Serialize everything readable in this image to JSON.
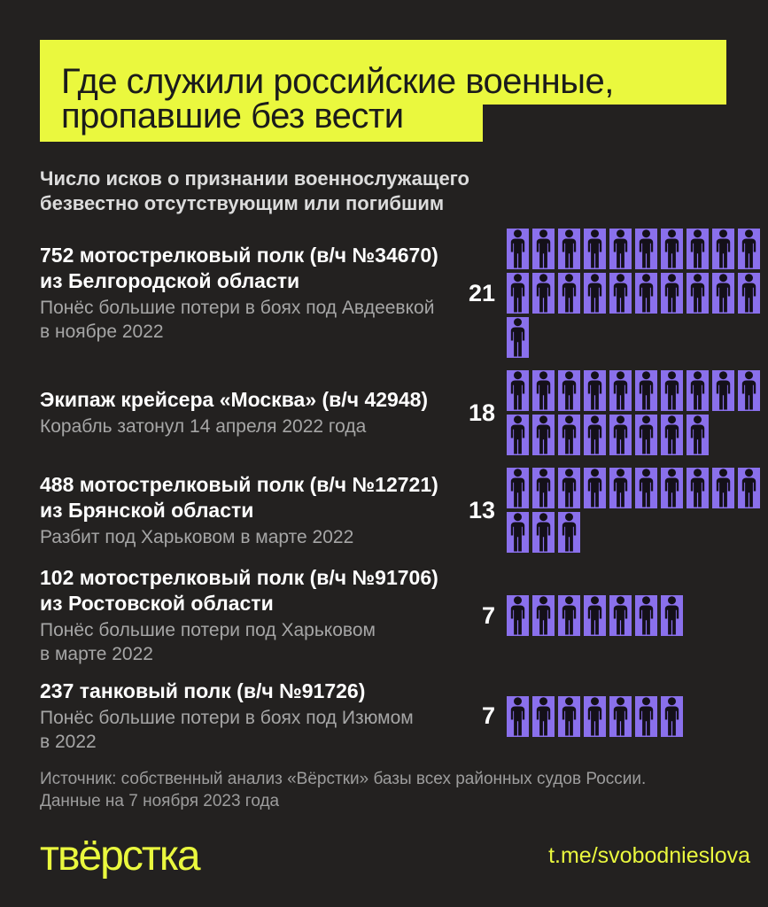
{
  "title": {
    "line1": "Где служили российские военные,",
    "line2": "пропавшие без вести"
  },
  "subtitle": "Число исков о признании военнослужащего безвестно отсутствующим или погибшим",
  "source": {
    "line1": "Источник: собственный анализ «Вёрстки» базы всех районных судов России.",
    "line2": "Данные на 7 ноября 2023 года"
  },
  "footer": {
    "logo": "твёрстка",
    "telegram": "t.me/svobodnieslova"
  },
  "colors": {
    "background": "#232120",
    "accent_yellow": "#eaf83e",
    "pictogram_purple": "#8a70ec",
    "pictogram_silhouette": "#141019",
    "text_primary": "#ffffff",
    "text_secondary": "#a6a6a6"
  },
  "chart_data": {
    "type": "pictogram",
    "title": "Где служили российские военные, пропавшие без вести",
    "subtitle": "Число исков о признании военнослужащего безвестно отсутствующим или погибшим",
    "icons_per_row": 10,
    "icon_unit": 1,
    "entries": [
      {
        "name_lines": [
          "752 мотострелковый полк (в/ч №34670)",
          "из Белгородской области"
        ],
        "desc_lines": [
          "Понёс большие потери в боях под Авдеевкой",
          "в ноябре 2022"
        ],
        "value": 21
      },
      {
        "name_lines": [
          "Экипаж крейсера «Москва» (в/ч 42948)"
        ],
        "desc_lines": [
          "Корабль затонул 14 апреля 2022 года"
        ],
        "value": 18
      },
      {
        "name_lines": [
          "488 мотострелковый полк (в/ч №12721)",
          "из Брянской области"
        ],
        "desc_lines": [
          "Разбит под Харьковом в марте 2022"
        ],
        "value": 13
      },
      {
        "name_lines": [
          "102 мотострелковый полк (в/ч №91706)",
          "из Ростовской области"
        ],
        "desc_lines": [
          "Понёс большие потери под Харьковом",
          "в марте 2022"
        ],
        "value": 7
      },
      {
        "name_lines": [
          "237 танковый полк (в/ч №91726)"
        ],
        "desc_lines": [
          "Понёс большие потери в боях под Изюмом",
          "в 2022"
        ],
        "value": 7
      }
    ],
    "source": "Источник: собственный анализ «Вёрстки» базы всех районных судов России. Данные на 7 ноября 2023 года"
  }
}
